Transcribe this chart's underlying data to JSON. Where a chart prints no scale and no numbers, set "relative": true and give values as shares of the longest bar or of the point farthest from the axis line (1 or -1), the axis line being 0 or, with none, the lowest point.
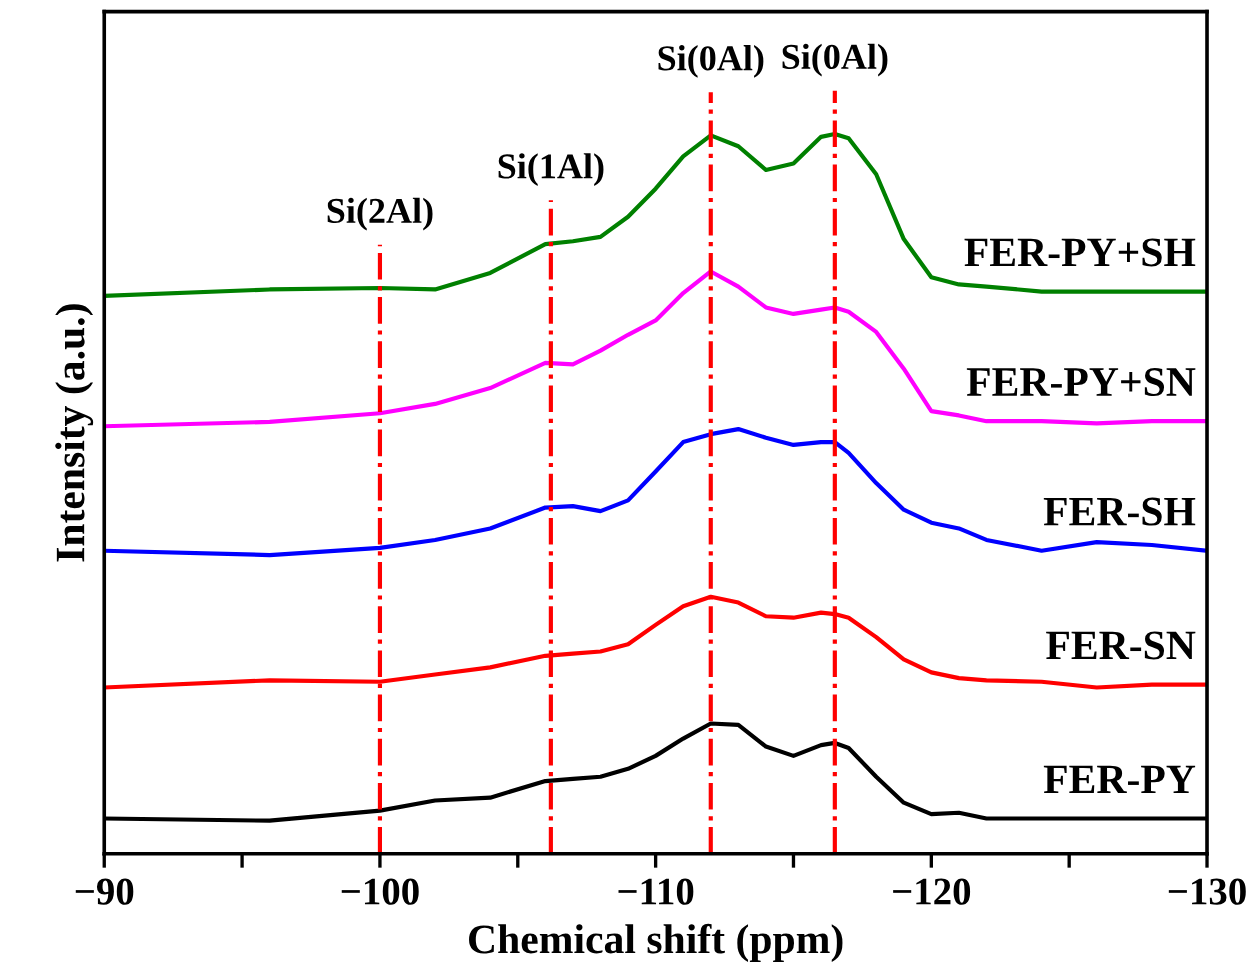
{
  "chart_data": {
    "type": "line",
    "relative": true,
    "xlabel": "Chemical shift (ppm)",
    "ylabel": "Intensity (a.u.)",
    "xlim": [
      -90,
      -130
    ],
    "xticks": [
      {
        "value": -90,
        "label": "−90"
      },
      {
        "value": -95,
        "label": null
      },
      {
        "value": -100,
        "label": "−100"
      },
      {
        "value": -105,
        "label": null
      },
      {
        "value": -110,
        "label": "−110"
      },
      {
        "value": -115,
        "label": null
      },
      {
        "value": -120,
        "label": "−120"
      },
      {
        "value": -125,
        "label": null
      },
      {
        "value": -130,
        "label": "−130"
      }
    ],
    "x": [
      -90,
      -96,
      -100,
      -102,
      -104,
      -106,
      -107,
      -108,
      -109,
      -110,
      -111,
      -112,
      -113,
      -114,
      -115,
      -116,
      -116.5,
      -117,
      -118,
      -119,
      -120,
      -121,
      -122,
      -124,
      -126,
      -128,
      -130
    ],
    "legend": false,
    "grid": false,
    "marker": "none",
    "line_style": "solid",
    "series": [
      {
        "name": "FER-PY",
        "color": "#000000",
        "values": [
          0.049,
          0.046,
          0.06,
          0.074,
          0.078,
          0.101,
          0.104,
          0.107,
          0.118,
          0.136,
          0.16,
          0.181,
          0.179,
          0.149,
          0.136,
          0.151,
          0.154,
          0.147,
          0.107,
          0.071,
          0.055,
          0.057,
          0.049,
          0.049,
          0.049,
          0.049,
          0.049
        ]
      },
      {
        "name": "FER-SN",
        "color": "#ff0000",
        "values": [
          0.231,
          0.241,
          0.239,
          0.249,
          0.259,
          0.275,
          0.278,
          0.281,
          0.291,
          0.318,
          0.344,
          0.357,
          0.349,
          0.33,
          0.328,
          0.335,
          0.333,
          0.328,
          0.301,
          0.27,
          0.252,
          0.244,
          0.241,
          0.239,
          0.231,
          0.235,
          0.235
        ]
      },
      {
        "name": "FER-SH",
        "color": "#0000ff",
        "values": [
          0.421,
          0.415,
          0.425,
          0.436,
          0.452,
          0.481,
          0.483,
          0.476,
          0.491,
          0.531,
          0.572,
          0.583,
          0.59,
          0.578,
          0.568,
          0.572,
          0.572,
          0.557,
          0.515,
          0.478,
          0.46,
          0.452,
          0.436,
          0.421,
          0.433,
          0.429,
          0.421
        ]
      },
      {
        "name": "FER-PY+SN",
        "color": "#ff00ff",
        "values": [
          0.594,
          0.6,
          0.612,
          0.625,
          0.647,
          0.682,
          0.68,
          0.699,
          0.721,
          0.741,
          0.779,
          0.809,
          0.788,
          0.759,
          0.75,
          0.756,
          0.759,
          0.753,
          0.725,
          0.674,
          0.615,
          0.609,
          0.601,
          0.601,
          0.598,
          0.601,
          0.601
        ]
      },
      {
        "name": "FER-PY+SH",
        "color": "#008000",
        "values": [
          0.775,
          0.784,
          0.786,
          0.784,
          0.807,
          0.847,
          0.851,
          0.857,
          0.885,
          0.924,
          0.969,
          0.998,
          0.983,
          0.95,
          0.959,
          0.996,
          1.0,
          0.994,
          0.944,
          0.854,
          0.801,
          0.791,
          0.788,
          0.781,
          0.781,
          0.781,
          0.781
        ]
      }
    ],
    "ref_lines": [
      {
        "axis": "x",
        "value": -100,
        "label": "Si(2Al)",
        "color": "#ff0000",
        "line_style": "dashdot"
      },
      {
        "axis": "x",
        "value": -106.2,
        "label": "Si(1Al)",
        "color": "#ff0000",
        "line_style": "dashdot"
      },
      {
        "axis": "x",
        "value": -112,
        "label": "Si(0Al)",
        "color": "#ff0000",
        "line_style": "dashdot"
      },
      {
        "axis": "x",
        "value": -116.5,
        "label": "Si(0Al)",
        "color": "#ff0000",
        "line_style": "dashdot"
      }
    ]
  }
}
